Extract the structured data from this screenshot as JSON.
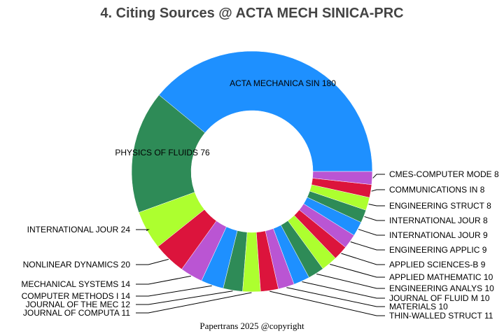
{
  "chart_data": {
    "type": "pie",
    "title": "4. Citing Sources @ ACTA MECH SINICA-PRC",
    "footer": "Papertrans 2025 @copyright",
    "colors": [
      "#1E90FF",
      "#2E8B57",
      "#ADFF2F",
      "#DC143C",
      "#BA55D3"
    ],
    "slices": [
      {
        "label": "ACTA MECHANICA SIN",
        "value": 180,
        "text": "ACTA MECHANICA SIN 180"
      },
      {
        "label": "PHYSICS OF FLUIDS",
        "value": 76,
        "text": "PHYSICS OF FLUIDS 76"
      },
      {
        "label": "INTERNATIONAL JOUR",
        "value": 24,
        "text": "INTERNATIONAL JOUR 24"
      },
      {
        "label": "NONLINEAR DYNAMICS",
        "value": 20,
        "text": "NONLINEAR DYNAMICS 20"
      },
      {
        "label": "MECHANICAL SYSTEMS",
        "value": 14,
        "text": "MECHANICAL SYSTEMS 14"
      },
      {
        "label": "COMPUTER METHODS I",
        "value": 14,
        "text": "COMPUTER METHODS I 14"
      },
      {
        "label": "JOURNAL OF THE MEC",
        "value": 12,
        "text": "JOURNAL OF THE MEC 12"
      },
      {
        "label": "JOURNAL OF COMPUTA",
        "value": 11,
        "text": "JOURNAL OF COMPUTA 11"
      },
      {
        "label": "THIN-WALLED STRUCT",
        "value": 11,
        "text": "THIN-WALLED STRUCT 11"
      },
      {
        "label": "MATERIALS",
        "value": 10,
        "text": "MATERIALS 10"
      },
      {
        "label": "JOURNAL OF FLUID M",
        "value": 10,
        "text": "JOURNAL OF FLUID M 10"
      },
      {
        "label": "ENGINEERING ANALYS",
        "value": 10,
        "text": "ENGINEERING ANALYS 10"
      },
      {
        "label": "APPLIED MATHEMATIC",
        "value": 10,
        "text": "APPLIED MATHEMATIC 10"
      },
      {
        "label": "APPLIED SCIENCES-B",
        "value": 9,
        "text": "APPLIED SCIENCES-B 9"
      },
      {
        "label": "ENGINEERING APPLIC",
        "value": 9,
        "text": "ENGINEERING APPLIC 9"
      },
      {
        "label": "INTERNATIONAL JOUR",
        "value": 9,
        "text": "INTERNATIONAL JOUR 9"
      },
      {
        "label": "INTERNATIONAL JOUR",
        "value": 8,
        "text": "INTERNATIONAL JOUR 8"
      },
      {
        "label": "ENGINEERING STRUCT",
        "value": 8,
        "text": "ENGINEERING STRUCT 8"
      },
      {
        "label": "COMMUNICATIONS IN",
        "value": 8,
        "text": "COMMUNICATIONS IN  8"
      },
      {
        "label": "CMES-COMPUTER MODE",
        "value": 8,
        "text": "CMES-COMPUTER MODE 8"
      }
    ]
  }
}
